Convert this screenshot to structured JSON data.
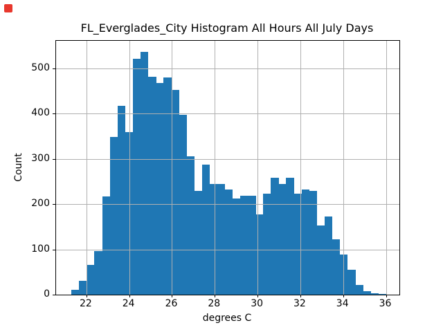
{
  "window": {
    "record_indicator_color": "#e8382d"
  },
  "chart_data": {
    "type": "histogram",
    "title": "FL_Everglades_City Histogram All Hours All July Days",
    "xlabel": "degrees C",
    "ylabel": "Count",
    "bin_start": 21.3,
    "bin_width": 0.3585,
    "counts": [
      10,
      30,
      65,
      97,
      217,
      349,
      417,
      359,
      522,
      536,
      482,
      468,
      480,
      452,
      397,
      305,
      229,
      287,
      245,
      245,
      232,
      213,
      218,
      218,
      178,
      223,
      258,
      244,
      258,
      223,
      233,
      230,
      153,
      172,
      122,
      89,
      55,
      21,
      7,
      3,
      1
    ],
    "x_ticks": [
      22,
      24,
      26,
      28,
      30,
      32,
      34,
      36
    ],
    "y_ticks": [
      0,
      100,
      200,
      300,
      400,
      500
    ],
    "xlim": [
      20.58,
      36.63
    ],
    "ylim": [
      0,
      561
    ],
    "bar_color": "#1f77b4",
    "grid": true,
    "grid_color": "#b0b0b0",
    "legend": null
  }
}
